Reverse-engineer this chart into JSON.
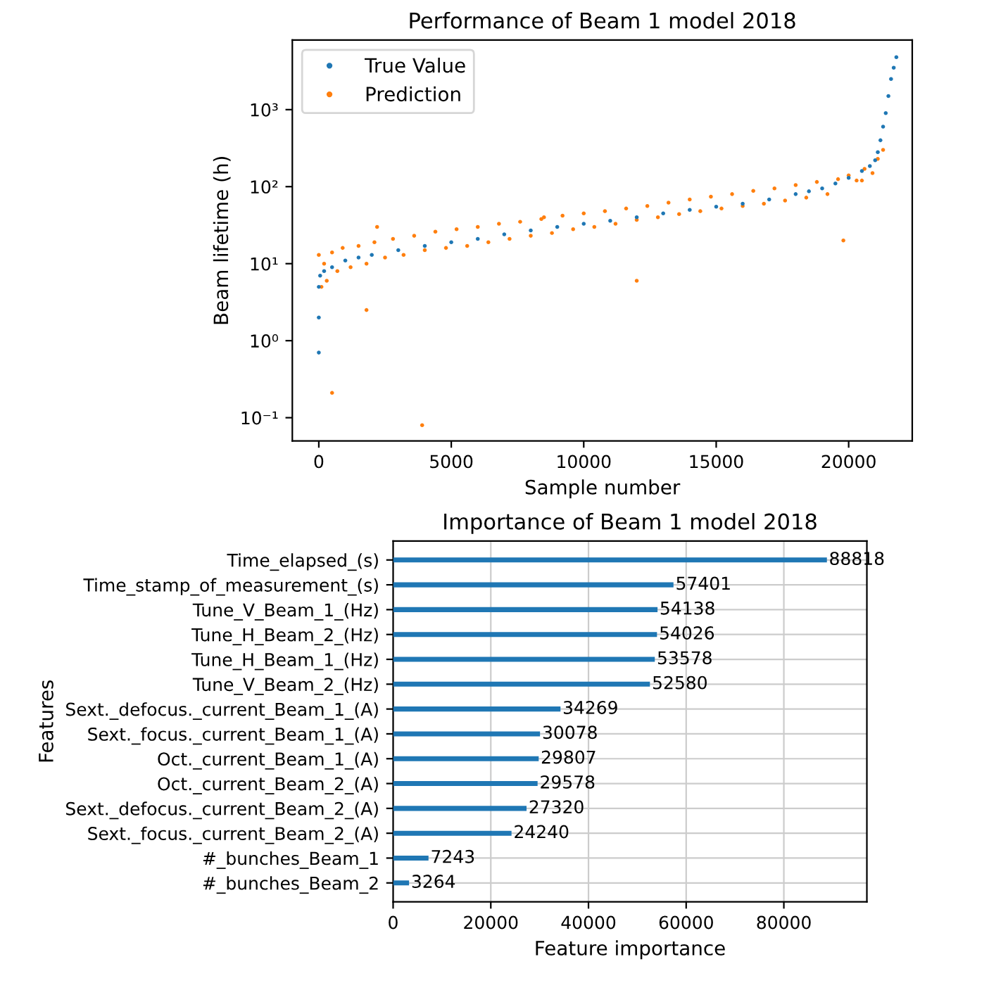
{
  "chart_data": [
    {
      "type": "scatter",
      "title": "Performance of Beam 1 model 2018",
      "xlabel": "Sample number",
      "ylabel": "Beam lifetime (h)",
      "log": "y",
      "xlim": [
        -1000,
        22400
      ],
      "ylim": [
        0.05,
        8000
      ],
      "xticks": [
        0,
        5000,
        10000,
        15000,
        20000
      ],
      "yticks": [
        {
          "value": 0.1,
          "label": "10⁻¹"
        },
        {
          "value": 1,
          "label": "10⁰"
        },
        {
          "value": 10,
          "label": "10¹"
        },
        {
          "value": 100,
          "label": "10²"
        },
        {
          "value": 1000,
          "label": "10³"
        }
      ],
      "legend": "top left",
      "marker": "circle",
      "grid": false,
      "series": [
        {
          "name": "True Value",
          "color": "#1f77b4",
          "x": [
            0,
            0,
            0,
            50,
            200,
            500,
            1000,
            1500,
            2000,
            3000,
            4000,
            5000,
            6000,
            7000,
            8000,
            9000,
            10000,
            11000,
            12000,
            13000,
            14000,
            15000,
            16000,
            17000,
            18000,
            18500,
            19000,
            19500,
            20000,
            20500,
            20800,
            21000,
            21100,
            21200,
            21300,
            21400,
            21500,
            21600,
            21700,
            21800
          ],
          "values": [
            0.7,
            2,
            5,
            7,
            8,
            9,
            11,
            12,
            13,
            15,
            17,
            19,
            21,
            24,
            27,
            30,
            33,
            36,
            40,
            45,
            50,
            55,
            60,
            68,
            80,
            87,
            95,
            110,
            130,
            160,
            185,
            220,
            280,
            400,
            600,
            900,
            1500,
            2500,
            3500,
            4800
          ]
        },
        {
          "name": "Prediction",
          "color": "#ff7f0e",
          "x": [
            0,
            100,
            200,
            300,
            500,
            700,
            900,
            1200,
            1500,
            1800,
            2100,
            2500,
            2800,
            3200,
            3600,
            4000,
            4400,
            4800,
            5200,
            5600,
            6000,
            6400,
            6800,
            7200,
            7600,
            8000,
            8400,
            8800,
            9200,
            9600,
            10000,
            10400,
            10800,
            11200,
            11600,
            12000,
            12400,
            12800,
            13200,
            13600,
            14000,
            14400,
            14800,
            15200,
            15600,
            16000,
            16400,
            16800,
            17200,
            17600,
            18000,
            18400,
            18800,
            19200,
            19600,
            20000,
            20300,
            20600,
            20900,
            21100,
            21300,
            500,
            3900,
            1800,
            8500,
            12000,
            20500,
            19800,
            2200
          ],
          "values": [
            13,
            5,
            10,
            6,
            14,
            8,
            16,
            9,
            17,
            10,
            19,
            12,
            21,
            13,
            23,
            15,
            26,
            16,
            28,
            17,
            30,
            19,
            33,
            21,
            35,
            23,
            38,
            25,
            42,
            28,
            45,
            30,
            48,
            33,
            52,
            37,
            56,
            40,
            62,
            44,
            68,
            48,
            74,
            52,
            80,
            56,
            88,
            60,
            95,
            66,
            105,
            72,
            115,
            80,
            125,
            140,
            120,
            170,
            150,
            230,
            300,
            0.21,
            0.08,
            2.5,
            40,
            6,
            120,
            20,
            30
          ]
        }
      ]
    },
    {
      "type": "bar",
      "orientation": "horizontal",
      "title": "Importance of Beam 1 model 2018",
      "xlabel": "Feature importance",
      "ylabel": "Features",
      "xlim": [
        0,
        97000
      ],
      "xticks": [
        0,
        20000,
        40000,
        60000,
        80000
      ],
      "grid": true,
      "data_labels": true,
      "color": "#1f77b4",
      "categories": [
        "Time_elapsed_(s)",
        "Time_stamp_of_measurement_(s)",
        "Tune_V_Beam_1_(Hz)",
        "Tune_H_Beam_2_(Hz)",
        "Tune_H_Beam_1_(Hz)",
        "Tune_V_Beam_2_(Hz)",
        "Sext._defocus._current_Beam_1_(A)",
        "Sext._focus._current_Beam_1_(A)",
        "Oct._current_Beam_1_(A)",
        "Oct._current_Beam_2_(A)",
        "Sext._defocus._current_Beam_2_(A)",
        "Sext._focus._current_Beam_2_(A)",
        "#_bunches_Beam_1",
        "#_bunches_Beam_2"
      ],
      "values": [
        88818,
        57401,
        54138,
        54026,
        53578,
        52580,
        34269,
        30078,
        29807,
        29578,
        27320,
        24240,
        7243,
        3264
      ]
    }
  ]
}
